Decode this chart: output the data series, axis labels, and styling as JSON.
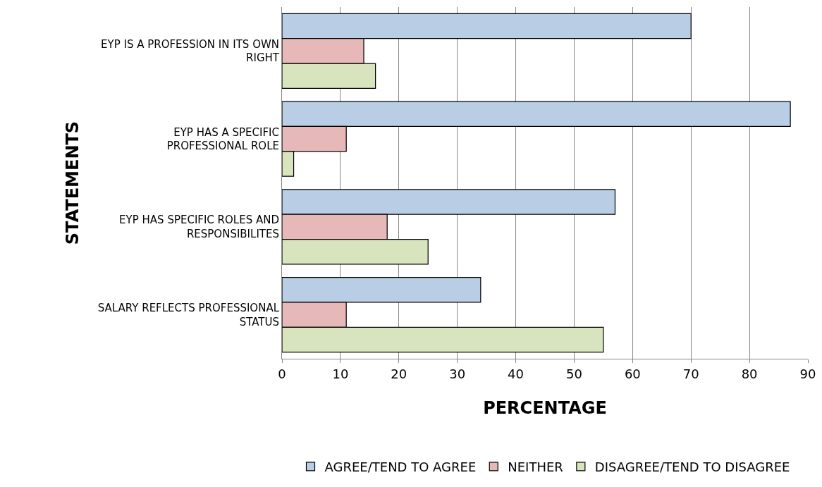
{
  "chart_data": {
    "type": "bar",
    "orientation": "horizontal",
    "xlabel": "PERCENTAGE",
    "ylabel": "STATEMENTS",
    "categories": [
      "EYP IS A PROFESSION IN ITS OWN RIGHT",
      "EYP HAS A SPECIFIC PROFESSIONAL ROLE",
      "EYP HAS SPECIFIC ROLES AND RESPONSIBILITES",
      "SALARY REFLECTS PROFESSIONAL STATUS"
    ],
    "series": [
      {
        "name": "AGREE/TEND TO AGREE",
        "color": "#b9cde5",
        "values": [
          70,
          87,
          57,
          34
        ]
      },
      {
        "name": "NEITHER",
        "color": "#e6b9b8",
        "values": [
          14,
          11,
          18,
          11
        ]
      },
      {
        "name": "DISAGREE/TEND TO DISAGREE",
        "color": "#d7e4bd",
        "values": [
          16,
          2,
          25,
          55
        ]
      }
    ],
    "xlim": [
      0,
      90
    ],
    "xticks": [
      0,
      10,
      20,
      30,
      40,
      50,
      60,
      70,
      80,
      90
    ],
    "grid": "x",
    "legend": "bottom"
  }
}
